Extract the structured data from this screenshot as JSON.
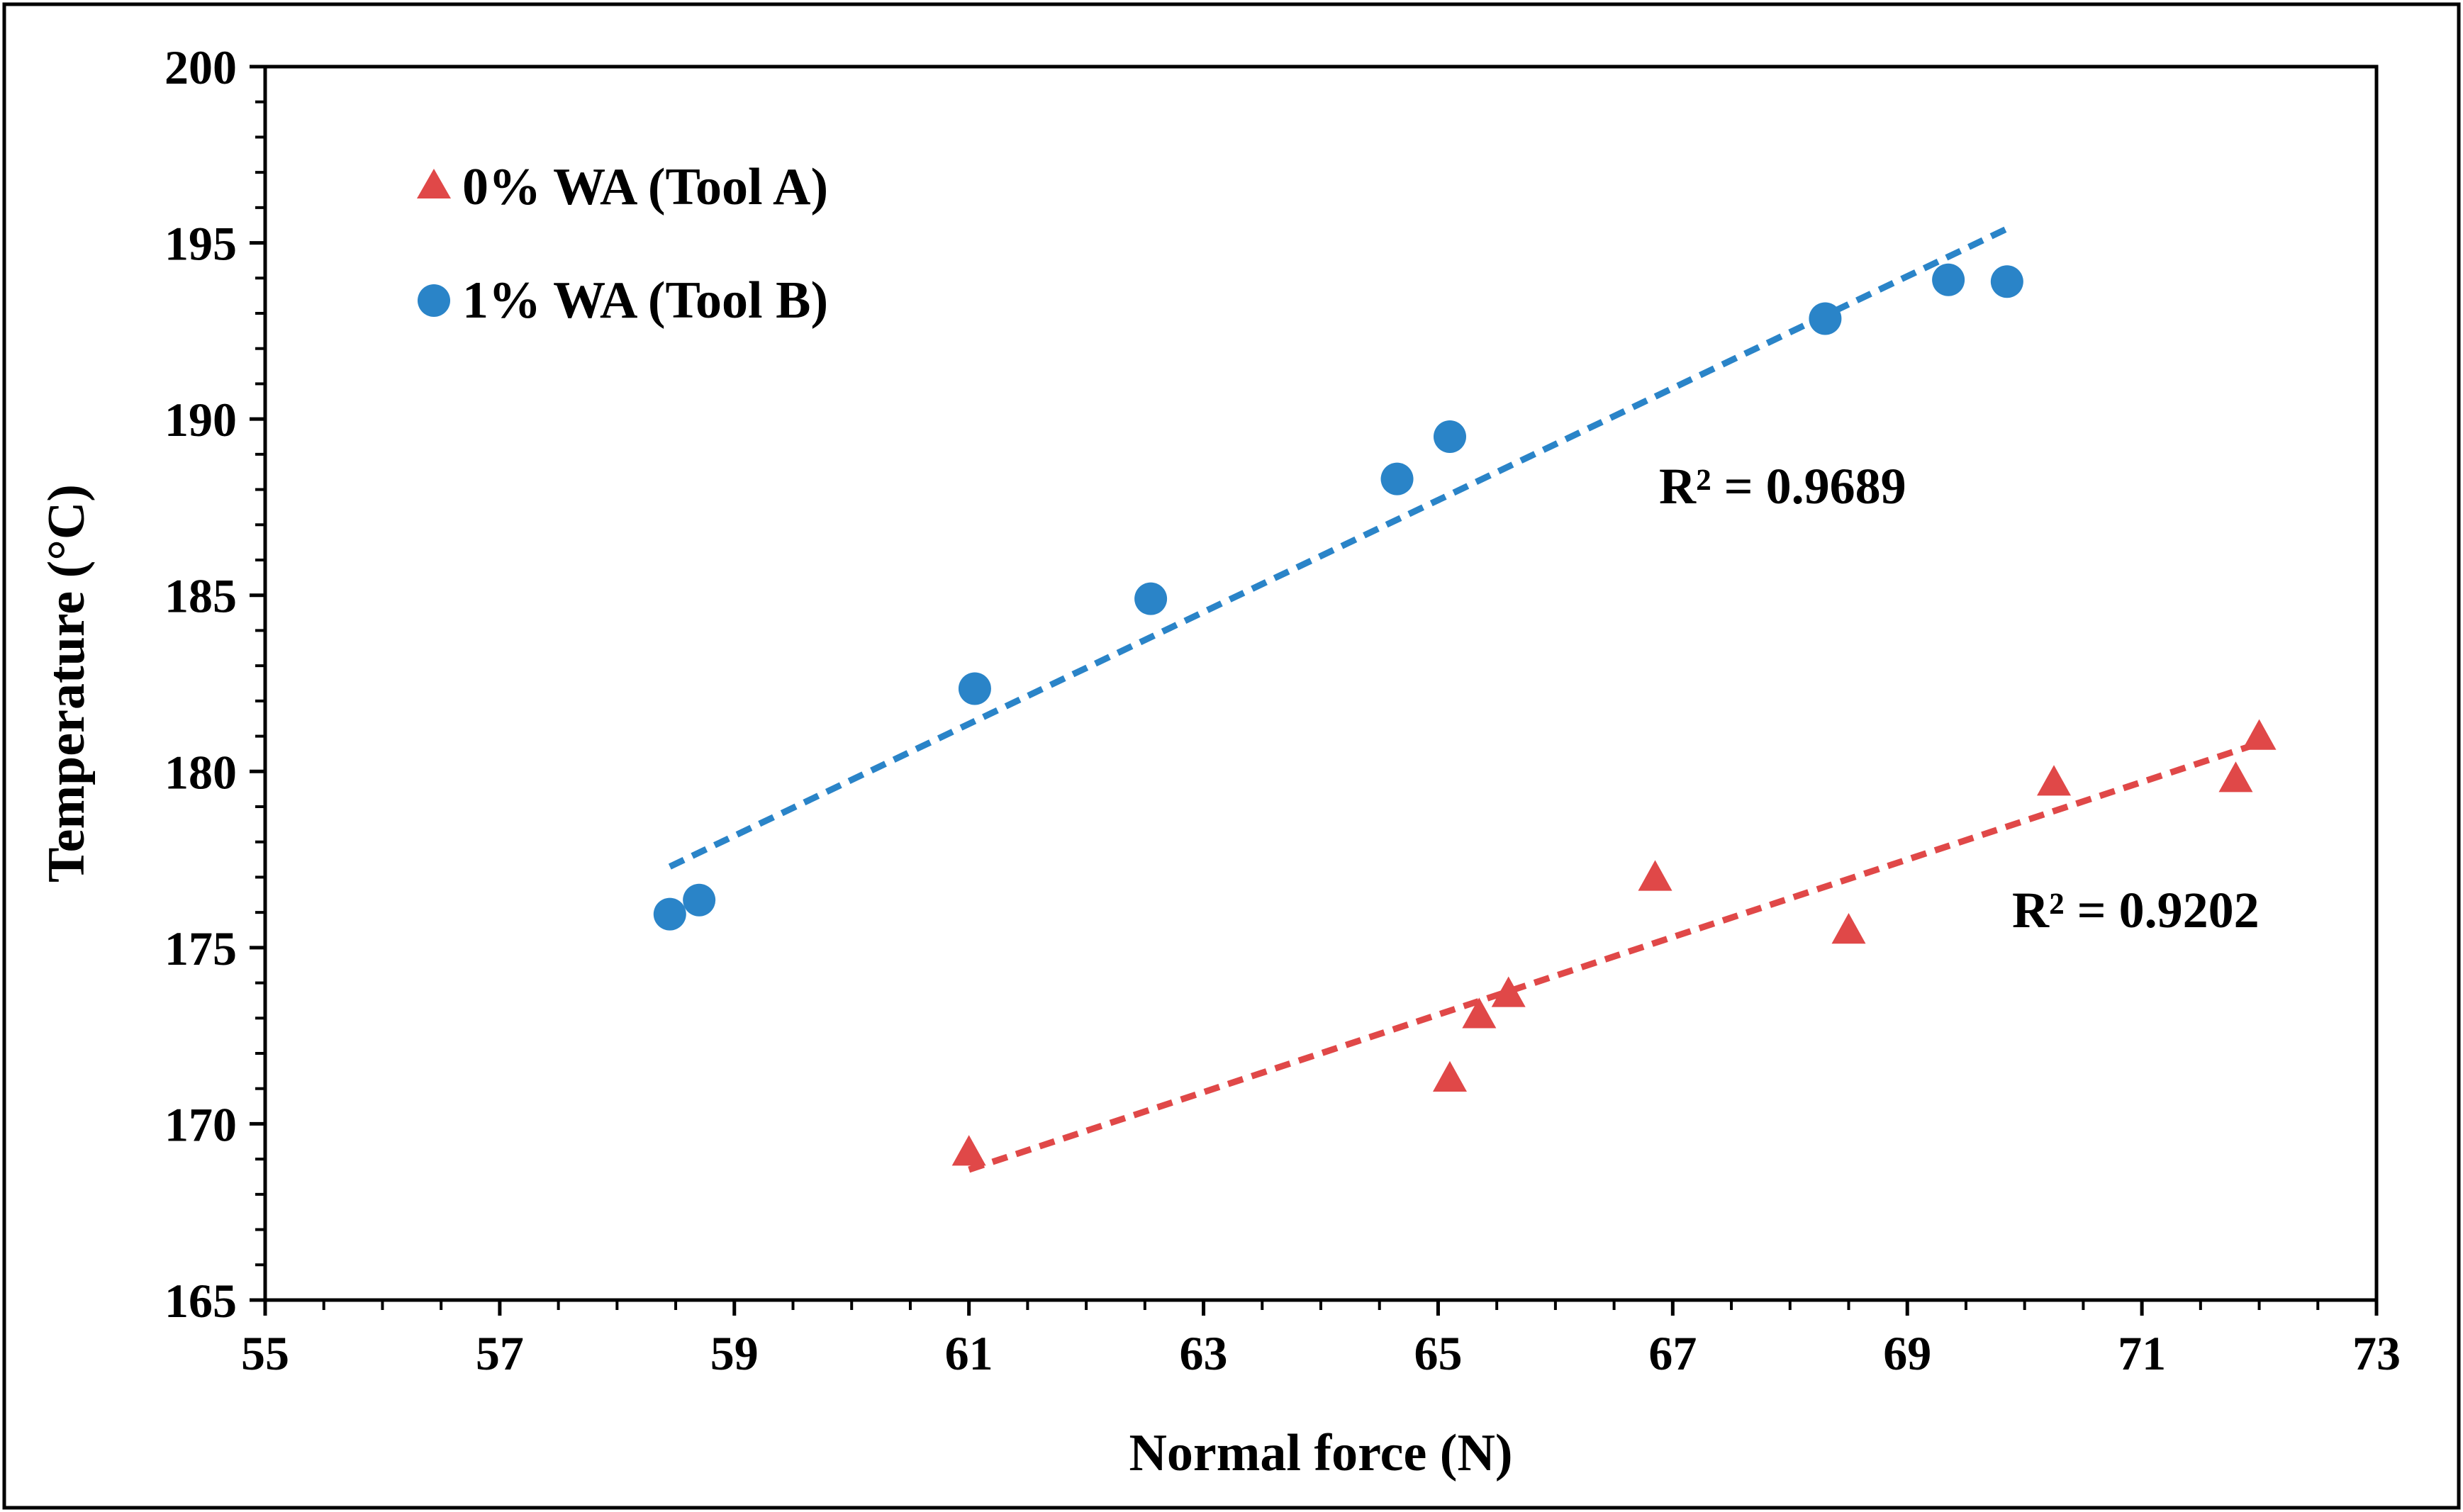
{
  "chart_data": {
    "type": "scatter",
    "title": "",
    "xlabel": "Normal force (N)",
    "ylabel": "Temperature (°C)",
    "xlim": [
      55,
      73
    ],
    "ylim": [
      165,
      200
    ],
    "xticks": [
      55,
      57,
      59,
      61,
      63,
      65,
      67,
      69,
      71,
      73
    ],
    "yticks": [
      165,
      170,
      175,
      180,
      185,
      190,
      195,
      200
    ],
    "grid": false,
    "legend_position": "top-left",
    "series": [
      {
        "name": "0% WA (Tool A)",
        "marker": "triangle",
        "color": "#e04848",
        "points": [
          {
            "x": 61.0,
            "y": 169.2
          },
          {
            "x": 65.1,
            "y": 171.3
          },
          {
            "x": 65.35,
            "y": 173.1
          },
          {
            "x": 65.6,
            "y": 173.7
          },
          {
            "x": 66.85,
            "y": 177.0
          },
          {
            "x": 68.5,
            "y": 175.5
          },
          {
            "x": 70.25,
            "y": 179.7
          },
          {
            "x": 71.8,
            "y": 179.8
          },
          {
            "x": 72.0,
            "y": 181.0
          }
        ],
        "trendline": {
          "x_start": 61.0,
          "y_start": 168.7,
          "x_end": 72.0,
          "y_end": 180.8,
          "style": "dashed"
        },
        "r_squared": "R² = 0.9202"
      },
      {
        "name": "1% WA (Tool B)",
        "marker": "circle",
        "color": "#2a84c8",
        "points": [
          {
            "x": 58.45,
            "y": 175.95
          },
          {
            "x": 58.7,
            "y": 176.35
          },
          {
            "x": 61.05,
            "y": 182.35
          },
          {
            "x": 62.55,
            "y": 184.9
          },
          {
            "x": 64.65,
            "y": 188.3
          },
          {
            "x": 65.1,
            "y": 189.5
          },
          {
            "x": 68.3,
            "y": 192.85
          },
          {
            "x": 69.35,
            "y": 193.95
          },
          {
            "x": 69.85,
            "y": 193.9
          }
        ],
        "trendline": {
          "x_start": 58.45,
          "y_start": 177.3,
          "x_end": 69.85,
          "y_end": 195.4,
          "style": "dashed"
        },
        "r_squared": "R² = 0.9689"
      }
    ]
  }
}
